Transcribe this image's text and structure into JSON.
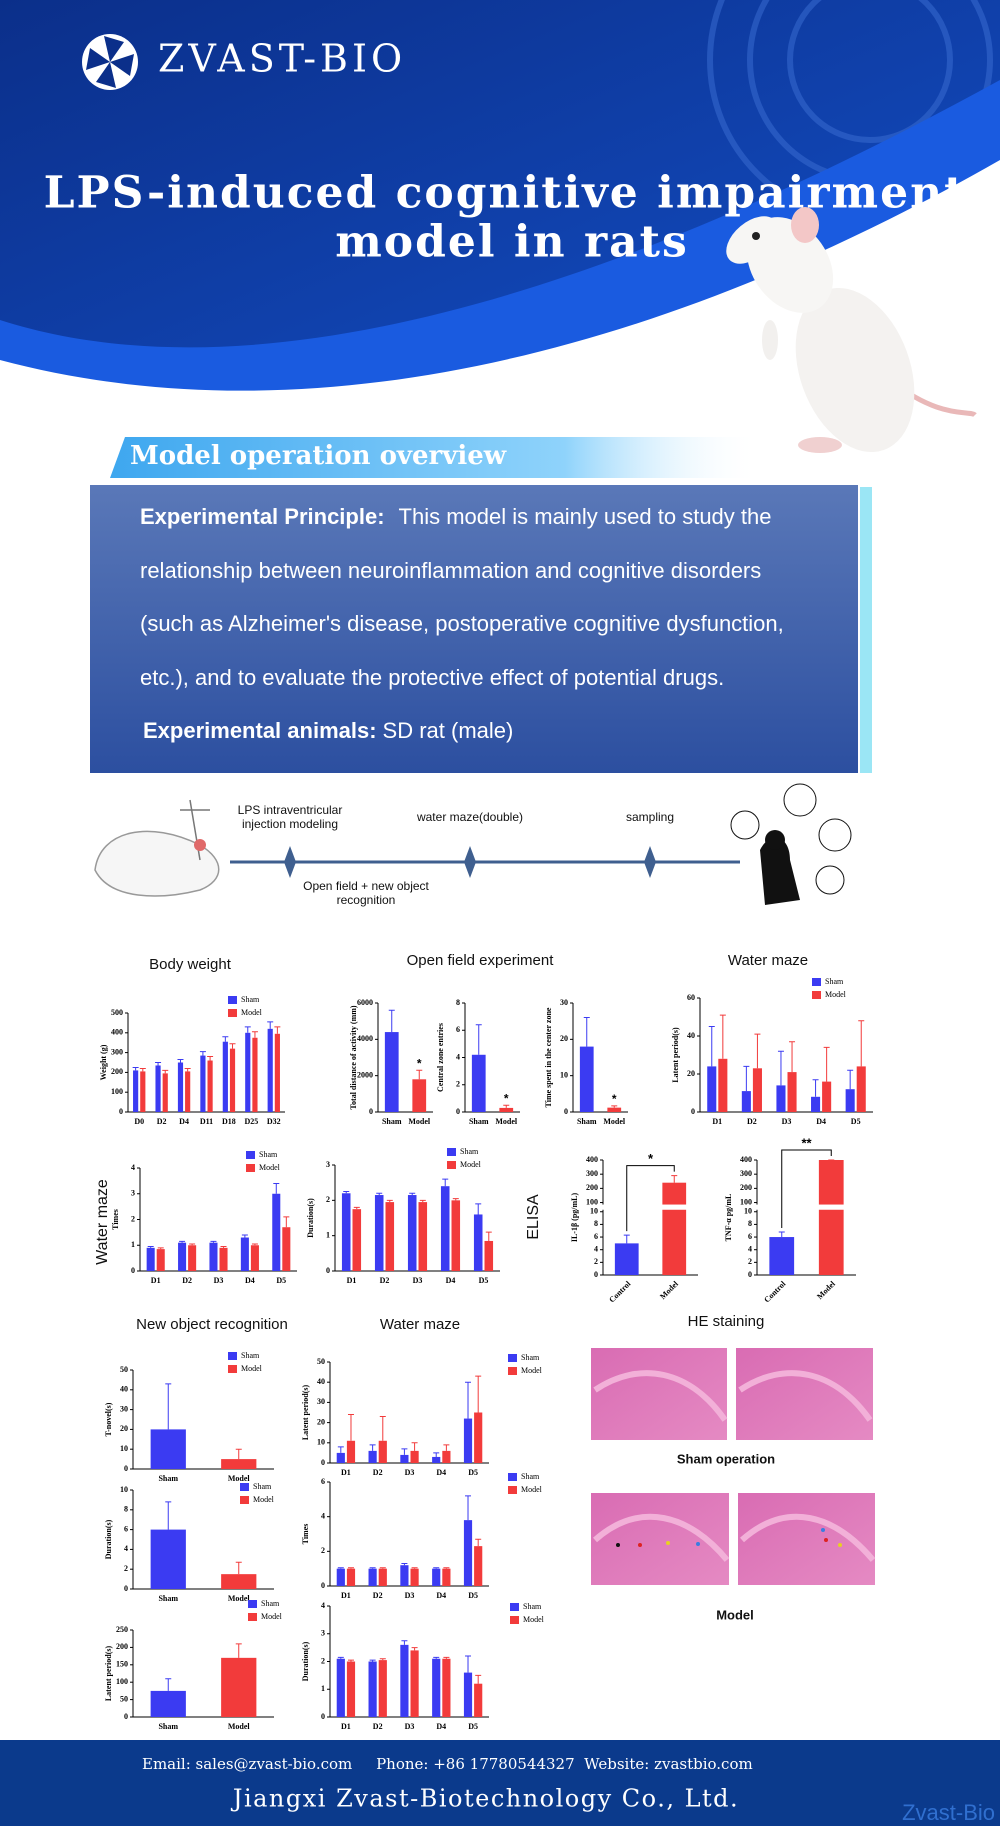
{
  "header": {
    "brand": "ZVAST-BIO",
    "title_lines": [
      "LPS-induced cognitive impairment",
      "model in rats"
    ]
  },
  "overview": {
    "heading": "Model operation overview",
    "principle_label": "Experimental Principle:",
    "principle_lines": [
      "This model is mainly used to study the",
      "relationship between neuroinflammation and cognitive disorders",
      "(such as Alzheimer's disease, postoperative cognitive dysfunction,",
      "etc.), and to evaluate the protective effect of potential drugs."
    ],
    "animals_label": "Experimental animals:",
    "animals_value": "SD rat (male)"
  },
  "timeline": {
    "above": [
      [
        "LPS intraventricular",
        "injection modeling"
      ],
      [
        "water maze(double)"
      ],
      [
        "sampling"
      ]
    ],
    "below": [
      [
        "Open field + new object",
        "recognition"
      ]
    ]
  },
  "sections": {
    "body_weight": "Body weight",
    "open_field": "Open field experiment",
    "water_maze_1": "Water maze",
    "water_maze_side": "Water maze",
    "elisa": "ELISA",
    "new_object": "New object recognition",
    "water_maze_2": "Water maze",
    "he": "HE staining",
    "he_sham": "Sham operation",
    "he_model": "Model"
  },
  "chart_data": [
    {
      "type": "bar",
      "ylabel": "Weight (g)",
      "categories": [
        "D0",
        "D2",
        "D4",
        "D11",
        "D18",
        "D25",
        "D32"
      ],
      "ylim": [
        0,
        500
      ],
      "yticks": [
        0,
        100,
        200,
        300,
        400,
        500
      ],
      "legend": true,
      "series": [
        {
          "name": "Sham",
          "color": "#3b3bf2",
          "values": [
            210,
            235,
            250,
            285,
            355,
            400,
            420
          ],
          "errors": [
            15,
            15,
            15,
            20,
            25,
            30,
            35
          ]
        },
        {
          "name": "Model",
          "color": "#f23b3b",
          "values": [
            205,
            195,
            205,
            260,
            320,
            375,
            395
          ],
          "errors": [
            15,
            15,
            15,
            20,
            25,
            30,
            35
          ]
        }
      ]
    },
    {
      "type": "bar",
      "ylabel": "Total distance of activity (mm)",
      "categories": [
        "Sham",
        "Model"
      ],
      "values": [
        4400,
        1800
      ],
      "errors": [
        1200,
        500
      ],
      "colors": [
        "#3b3bf2",
        "#f23b3b"
      ],
      "ylim": [
        0,
        6000
      ],
      "yticks": [
        0,
        2000,
        4000,
        6000
      ],
      "annotations": [
        {
          "text": "*",
          "category": "Model"
        }
      ]
    },
    {
      "type": "bar",
      "ylabel": "Central zone entries",
      "categories": [
        "Sham",
        "Model"
      ],
      "values": [
        4.2,
        0.3
      ],
      "errors": [
        2.2,
        0.2
      ],
      "colors": [
        "#3b3bf2",
        "#f23b3b"
      ],
      "ylim": [
        0,
        8
      ],
      "yticks": [
        0,
        2,
        4,
        6,
        8
      ],
      "annotations": [
        {
          "text": "*",
          "category": "Model"
        }
      ]
    },
    {
      "type": "bar",
      "ylabel": "Time spent in the center zone",
      "categories": [
        "Sham",
        "Model"
      ],
      "values": [
        18,
        1.2
      ],
      "errors": [
        8,
        0.5
      ],
      "colors": [
        "#3b3bf2",
        "#f23b3b"
      ],
      "ylim": [
        0,
        30
      ],
      "yticks": [
        0,
        10,
        20,
        30
      ],
      "annotations": [
        {
          "text": "*",
          "category": "Model"
        }
      ]
    },
    {
      "type": "bar",
      "ylabel": "Latent period(s)",
      "categories": [
        "D1",
        "D2",
        "D3",
        "D4",
        "D5"
      ],
      "ylim": [
        0,
        60
      ],
      "yticks": [
        0,
        20,
        40,
        60
      ],
      "legend": true,
      "series": [
        {
          "name": "Sham",
          "color": "#3b3bf2",
          "values": [
            24,
            11,
            14,
            8,
            12
          ],
          "errors": [
            21,
            13,
            18,
            9,
            10
          ]
        },
        {
          "name": "Model",
          "color": "#f23b3b",
          "values": [
            28,
            23,
            21,
            16,
            24
          ],
          "errors": [
            23,
            18,
            16,
            18,
            24
          ]
        }
      ]
    },
    {
      "type": "bar",
      "ylabel": "Times",
      "categories": [
        "D1",
        "D2",
        "D3",
        "D4",
        "D5"
      ],
      "ylim": [
        0,
        4
      ],
      "yticks": [
        0,
        1,
        2,
        3,
        4
      ],
      "legend": true,
      "series": [
        {
          "name": "Sham",
          "color": "#3b3bf2",
          "values": [
            0.9,
            1.1,
            1.1,
            1.3,
            3.0
          ],
          "errors": [
            0.05,
            0.05,
            0.05,
            0.1,
            0.4
          ]
        },
        {
          "name": "Model",
          "color": "#f23b3b",
          "values": [
            0.85,
            1.0,
            0.9,
            1.0,
            1.7
          ],
          "errors": [
            0.05,
            0.05,
            0.05,
            0.05,
            0.4
          ]
        }
      ]
    },
    {
      "type": "bar",
      "ylabel": "Duration(s)",
      "categories": [
        "D1",
        "D2",
        "D3",
        "D4",
        "D5"
      ],
      "ylim": [
        0,
        3
      ],
      "yticks": [
        0,
        1,
        2,
        3
      ],
      "legend": true,
      "series": [
        {
          "name": "Sham",
          "color": "#3b3bf2",
          "values": [
            2.2,
            2.15,
            2.15,
            2.4,
            1.6
          ],
          "errors": [
            0.05,
            0.05,
            0.05,
            0.2,
            0.3
          ]
        },
        {
          "name": "Model",
          "color": "#f23b3b",
          "values": [
            1.75,
            1.95,
            1.95,
            2.0,
            0.85
          ],
          "errors": [
            0.05,
            0.05,
            0.05,
            0.05,
            0.25
          ]
        }
      ]
    },
    {
      "type": "bar",
      "ylabel": "IL-1β (pg/mL)",
      "categories": [
        "Control",
        "Model"
      ],
      "values": [
        5,
        240
      ],
      "errors": [
        1.3,
        50
      ],
      "colors": [
        "#3b3bf2",
        "#f23b3b"
      ],
      "ylim": [
        0,
        400
      ],
      "ybreak": [
        10,
        100
      ],
      "yticks": [
        0,
        2,
        4,
        6,
        8,
        10,
        100,
        200,
        300,
        400
      ],
      "xtick_rotation": -45,
      "annotations": [
        {
          "text": "*",
          "category": "Model",
          "bracket": true
        }
      ]
    },
    {
      "type": "bar",
      "ylabel": "TNF-α pg/mL",
      "categories": [
        "Control",
        "Model"
      ],
      "values": [
        6,
        400
      ],
      "errors": [
        0.8,
        0
      ],
      "colors": [
        "#3b3bf2",
        "#f23b3b"
      ],
      "ylim": [
        0,
        400
      ],
      "ybreak": [
        10,
        100
      ],
      "yticks": [
        0,
        2,
        4,
        6,
        8,
        10,
        100,
        200,
        300,
        400
      ],
      "xtick_rotation": -45,
      "annotations": [
        {
          "text": "**",
          "category": "Model",
          "bracket": true
        }
      ]
    },
    {
      "type": "bar",
      "ylabel": "T-novel(s)",
      "categories": [
        "Sham",
        "Model"
      ],
      "ylim": [
        0,
        50
      ],
      "yticks": [
        0,
        10,
        20,
        30,
        40,
        50
      ],
      "legend": true,
      "series": [
        {
          "name": "Sham",
          "color": "#3b3bf2",
          "values": [
            20,
            null
          ],
          "errors": [
            23,
            null
          ]
        },
        {
          "name": "Model",
          "color": "#f23b3b",
          "values": [
            null,
            5
          ],
          "errors": [
            null,
            5
          ]
        }
      ]
    },
    {
      "type": "bar",
      "ylabel": "Duration(s)",
      "categories": [
        "Sham",
        "Model"
      ],
      "ylim": [
        0,
        10
      ],
      "yticks": [
        0,
        2,
        4,
        6,
        8,
        10
      ],
      "legend": true,
      "series": [
        {
          "name": "Sham",
          "color": "#3b3bf2",
          "values": [
            6,
            null
          ],
          "errors": [
            2.8,
            null
          ]
        },
        {
          "name": "Model",
          "color": "#f23b3b",
          "values": [
            null,
            1.5
          ],
          "errors": [
            null,
            1.2
          ]
        }
      ]
    },
    {
      "type": "bar",
      "ylabel": "Latent period(s)",
      "categories": [
        "Sham",
        "Model"
      ],
      "ylim": [
        0,
        250
      ],
      "yticks": [
        0,
        50,
        100,
        150,
        200,
        250
      ],
      "legend": true,
      "series": [
        {
          "name": "Sham",
          "color": "#3b3bf2",
          "values": [
            75,
            null
          ],
          "errors": [
            35,
            null
          ]
        },
        {
          "name": "Model",
          "color": "#f23b3b",
          "values": [
            null,
            170
          ],
          "errors": [
            null,
            40
          ]
        }
      ]
    },
    {
      "type": "bar",
      "ylabel": "Latent period(s)",
      "categories": [
        "D1",
        "D2",
        "D3",
        "D4",
        "D5"
      ],
      "ylim": [
        0,
        50
      ],
      "yticks": [
        0,
        10,
        20,
        30,
        40,
        50
      ],
      "legend": true,
      "series": [
        {
          "name": "Sham",
          "color": "#3b3bf2",
          "values": [
            5,
            6,
            4,
            3,
            22
          ],
          "errors": [
            3,
            3,
            3,
            2,
            18
          ]
        },
        {
          "name": "Model",
          "color": "#f23b3b",
          "values": [
            11,
            11,
            6,
            6,
            25
          ],
          "errors": [
            13,
            12,
            4,
            3,
            18
          ]
        }
      ]
    },
    {
      "type": "bar",
      "ylabel": "Times",
      "categories": [
        "D1",
        "D2",
        "D3",
        "D4",
        "D5"
      ],
      "ylim": [
        0,
        6
      ],
      "yticks": [
        0,
        2,
        4,
        6
      ],
      "legend": true,
      "series": [
        {
          "name": "Sham",
          "color": "#3b3bf2",
          "values": [
            1,
            1,
            1.2,
            1,
            3.8
          ],
          "errors": [
            0.05,
            0.05,
            0.1,
            0.05,
            1.4
          ]
        },
        {
          "name": "Model",
          "color": "#f23b3b",
          "values": [
            1,
            1,
            1,
            1,
            2.3
          ],
          "errors": [
            0.05,
            0.05,
            0.05,
            0.05,
            0.4
          ]
        }
      ]
    },
    {
      "type": "bar",
      "ylabel": "Duration(s)",
      "categories": [
        "D1",
        "D2",
        "D3",
        "D4",
        "D5"
      ],
      "ylim": [
        0,
        4
      ],
      "yticks": [
        0,
        1,
        2,
        3,
        4
      ],
      "legend": true,
      "series": [
        {
          "name": "Sham",
          "color": "#3b3bf2",
          "values": [
            2.1,
            2.0,
            2.6,
            2.1,
            1.6
          ],
          "errors": [
            0.05,
            0.05,
            0.15,
            0.05,
            0.6
          ]
        },
        {
          "name": "Model",
          "color": "#f23b3b",
          "values": [
            2.0,
            2.05,
            2.4,
            2.1,
            1.2
          ],
          "errors": [
            0.05,
            0.05,
            0.1,
            0.05,
            0.3
          ]
        }
      ]
    }
  ],
  "footer": {
    "contact": "Email: sales@zvast-bio.com     Phone: +86 17780544327  Website: zvastbio.com",
    "company": "Jiangxi Zvast-Biotechnology Co., Ltd.",
    "watermark": "Zvast-Bio"
  }
}
